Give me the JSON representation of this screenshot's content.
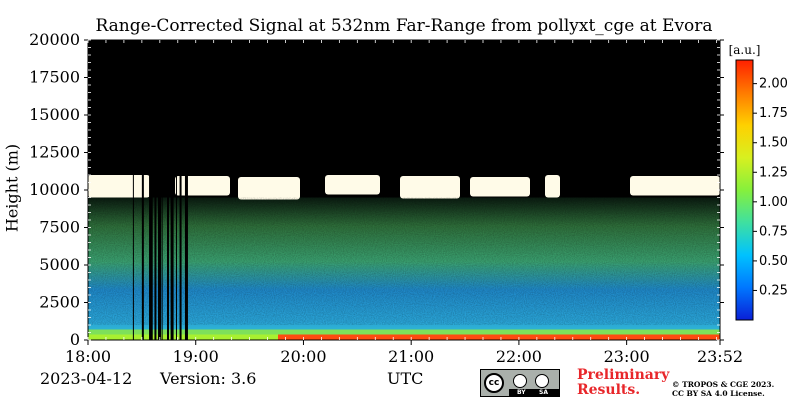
{
  "chart_data": {
    "type": "heatmap",
    "title": "Range-Corrected Signal at 532nm Far-Range from pollyxt_cge at Evora",
    "ylabel": "Height (m)",
    "xlabel": "UTC",
    "x_ticks": [
      "18:00",
      "19:00",
      "20:00",
      "21:00",
      "22:00",
      "23:00",
      "23:52"
    ],
    "y_ticks": [
      0,
      2500,
      5000,
      7500,
      10000,
      12500,
      15000,
      17500,
      20000
    ],
    "ylim": [
      0,
      20000
    ],
    "colorbar": {
      "unit": "[a.u.]",
      "ticks": [
        "0.25",
        "0.50",
        "0.75",
        "1.00",
        "1.25",
        "1.50",
        "1.75",
        "2.00"
      ],
      "range": [
        0,
        2.2
      ],
      "colormap": [
        "#0a1fd6",
        "#0077ff",
        "#00c2ff",
        "#3fe0a0",
        "#86f03c",
        "#d8f020",
        "#ffd000",
        "#ff7a00",
        "#ff2000"
      ]
    },
    "features": {
      "cloud_layer_height_m": [
        9500,
        11000
      ],
      "near_surface_strong_signal_m": [
        0,
        700
      ],
      "aerosol_layer_top_m": 3000
    },
    "background": "#000000",
    "grid": false
  },
  "footer": {
    "date": "2023-04-12",
    "version": "Version: 3.6",
    "license_badge": "CC BY SA",
    "preliminary": "Preliminary Results.",
    "copyright_line1": "© TROPOS & CGE 2023.",
    "copyright_line2": "CC BY SA 4.0 License."
  }
}
